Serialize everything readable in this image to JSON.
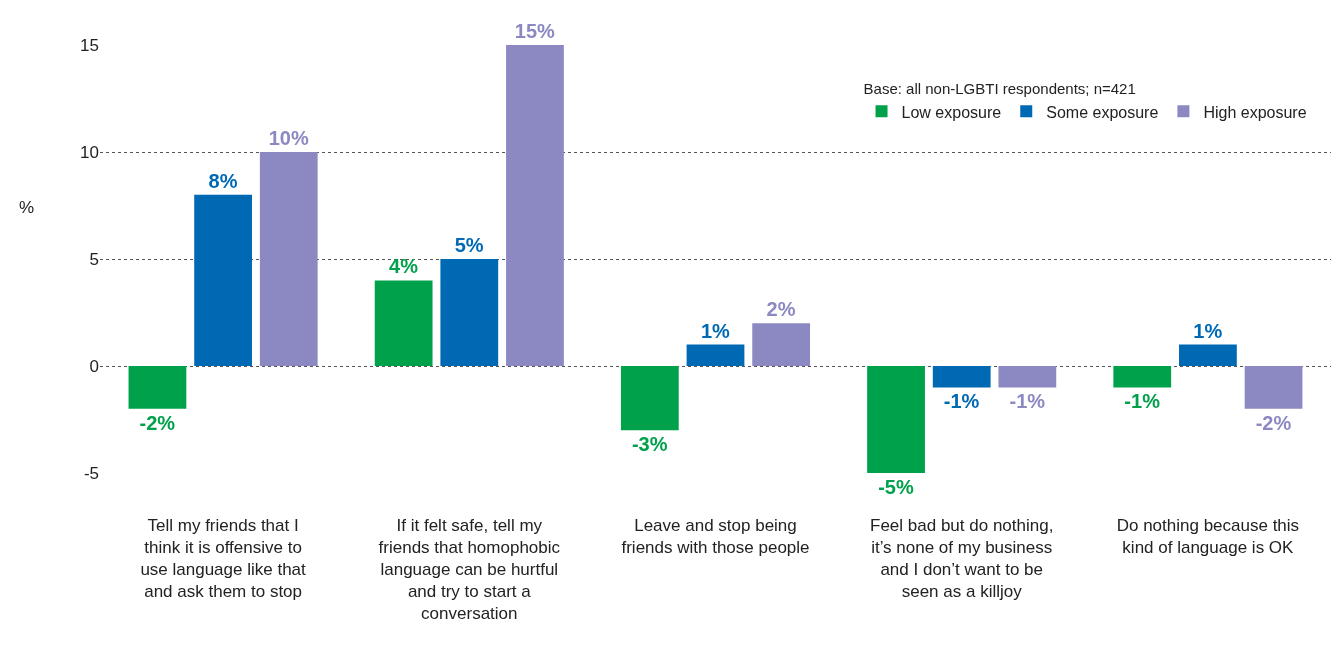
{
  "chart_data": {
    "type": "bar",
    "ylabel": "%",
    "legend_title": "Base: all non-LGBTI respondents; n=421",
    "categories": [
      "Tell my friends that I think it is offensive to use language like that and ask them to stop",
      "If it felt safe, tell my friends that homophobic language can be hurtful and try to start a conversation",
      "Leave and stop being friends with those people",
      "Feel bad but do nothing, it’s none of my business and I don’t want to be seen as a killjoy",
      "Do nothing because this kind of language is OK"
    ],
    "series": [
      {
        "name": "Low exposure",
        "color": "#00a14b",
        "values": [
          -2,
          4,
          -3,
          -5,
          -1
        ],
        "value_labels": [
          "-2%",
          "4%",
          "-3%",
          "-5%",
          "-1%"
        ]
      },
      {
        "name": "Some exposure",
        "color": "#0069b4",
        "values": [
          8,
          5,
          1,
          -1,
          1
        ],
        "value_labels": [
          "8%",
          "5%",
          "1%",
          "-1%",
          "1%"
        ]
      },
      {
        "name": "High exposure",
        "color": "#8b88c2",
        "values": [
          10,
          15,
          2,
          -1,
          -2
        ],
        "value_labels": [
          "10%",
          "15%",
          "2%",
          "-1%",
          "-2%"
        ]
      }
    ],
    "ylim": [
      -5,
      15
    ],
    "yticks": [
      -5,
      0,
      5,
      10,
      15
    ],
    "grid": "y",
    "legend": "top right"
  }
}
